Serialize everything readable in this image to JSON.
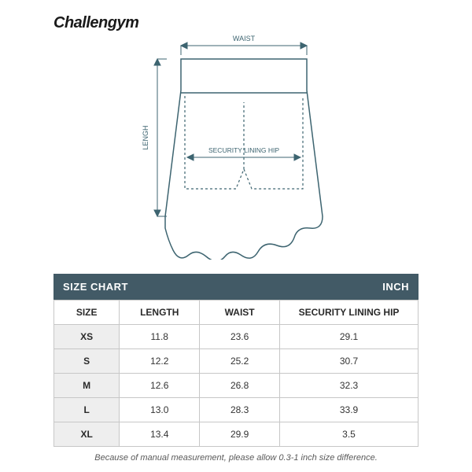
{
  "brand": "Challengym",
  "diagram": {
    "stroke": "#3d6470",
    "dash": "#3d6470",
    "arrow": "#3d6470",
    "label_color": "#3d6470",
    "label_fontsize": 9,
    "bg": "#ffffff",
    "labels": {
      "waist": "WAIST",
      "length": "LENGH",
      "hip": "SECURITY LINING HIP"
    }
  },
  "table": {
    "title_left": "SIZE CHART",
    "title_right": "INCH",
    "header_bg": "#425a66",
    "header_fg": "#ffffff",
    "border_color": "#c7c7c7",
    "size_col_bg": "#eeeeee",
    "cell_bg": "#ffffff",
    "columns": [
      "SIZE",
      "LENGTH",
      "WAIST",
      "SECURITY LINING HIP"
    ],
    "rows": [
      [
        "XS",
        "11.8",
        "23.6",
        "29.1"
      ],
      [
        "S",
        "12.2",
        "25.2",
        "30.7"
      ],
      [
        "M",
        "12.6",
        "26.8",
        "32.3"
      ],
      [
        "L",
        "13.0",
        "28.3",
        "33.9"
      ],
      [
        "XL",
        "13.4",
        "29.9",
        "3.5"
      ]
    ]
  },
  "footnote": "Because of manual measurement, please allow 0.3-1 inch size difference."
}
